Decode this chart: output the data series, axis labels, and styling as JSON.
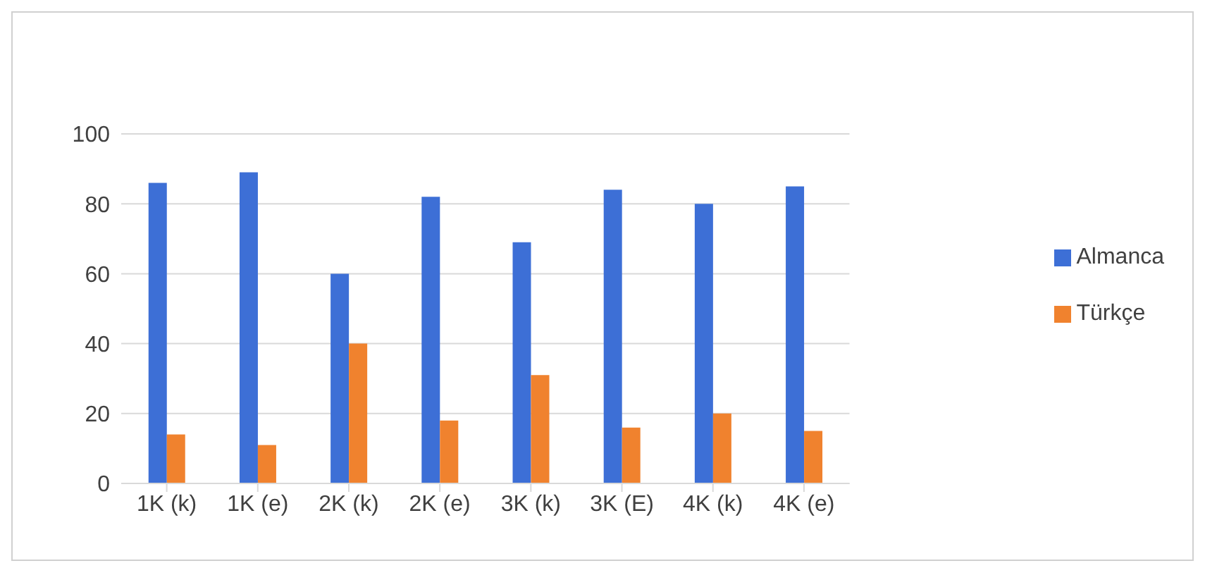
{
  "chart_data": {
    "type": "bar",
    "categories": [
      "1K (k)",
      "1K (e)",
      "2K (k)",
      "2K (e)",
      "3K (k)",
      "3K (E)",
      "4K (k)",
      "4K (e)"
    ],
    "series": [
      {
        "name": "Almanca",
        "color": "#3d6fd6",
        "values": [
          86,
          89,
          60,
          82,
          69,
          84,
          80,
          85
        ]
      },
      {
        "name": "Türkçe",
        "color": "#f0822e",
        "values": [
          14,
          11,
          40,
          18,
          31,
          16,
          20,
          15
        ]
      }
    ],
    "ylim": [
      0,
      100
    ],
    "yticks": [
      0,
      20,
      40,
      60,
      80,
      100
    ],
    "grid": "y",
    "legend": "right"
  }
}
